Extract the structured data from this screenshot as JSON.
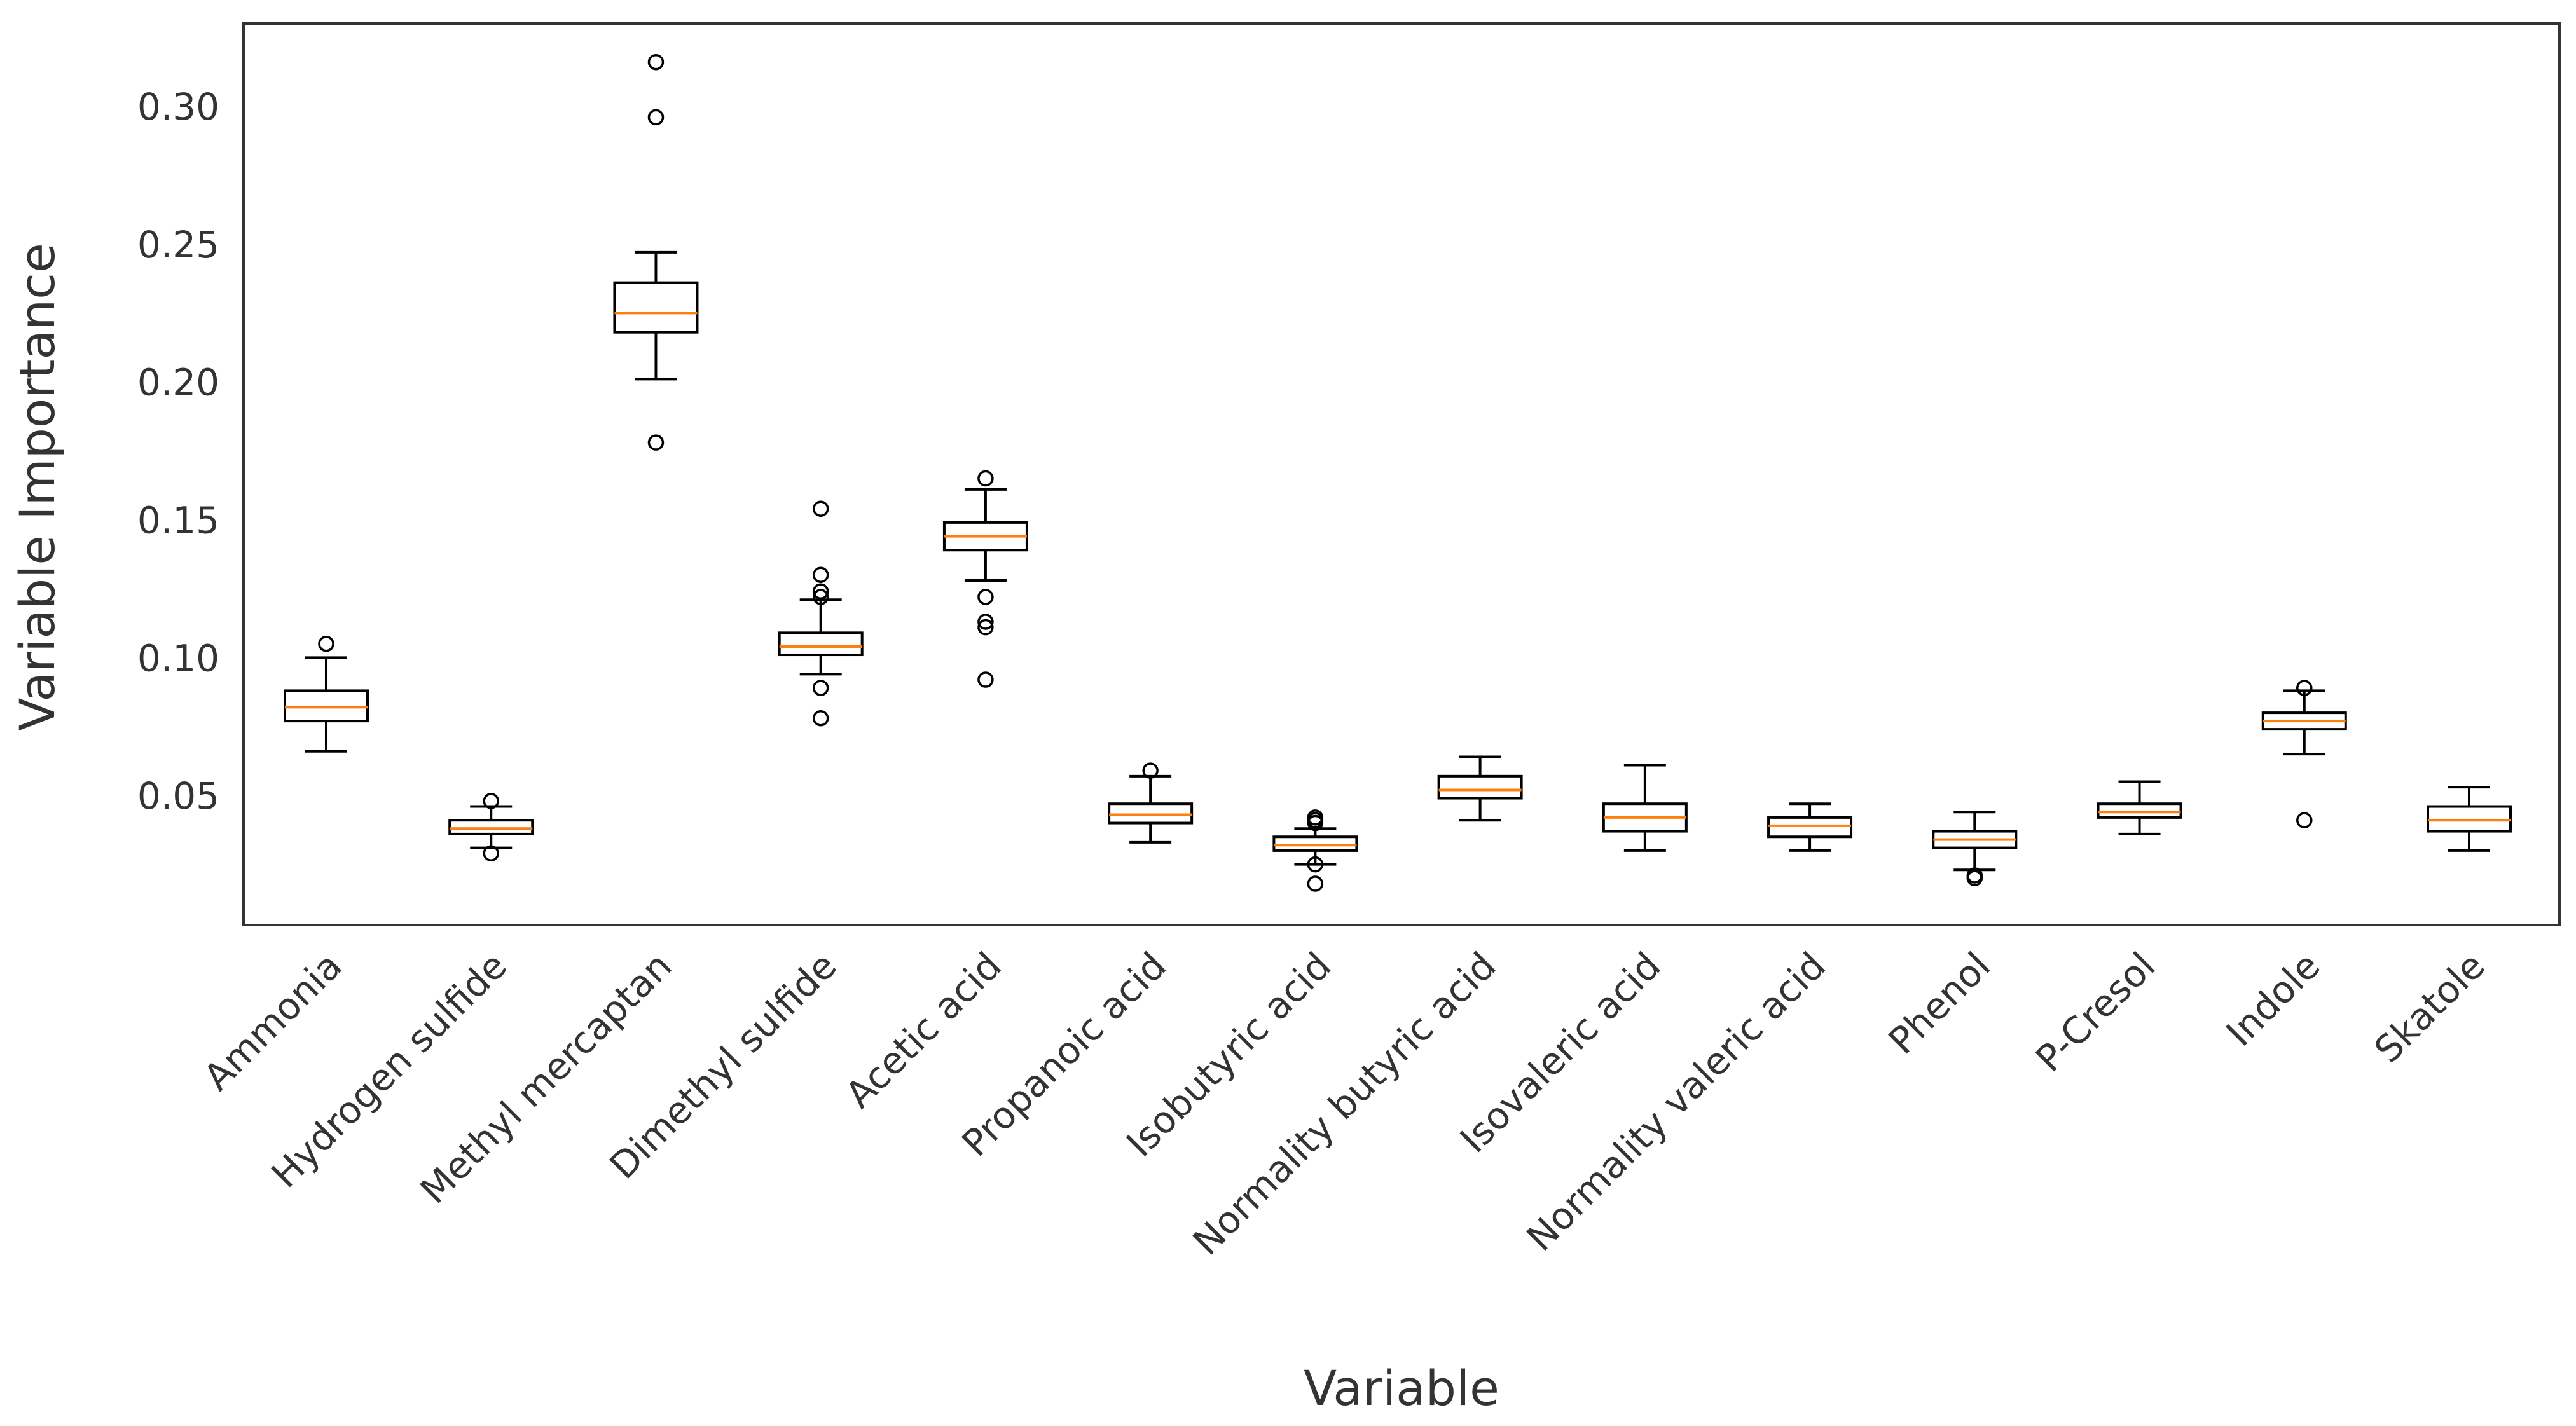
{
  "chart_data": {
    "type": "boxplot",
    "title": "",
    "xlabel": "Variable",
    "ylabel": "Variable Importance",
    "ylim": [
      0.003,
      0.33
    ],
    "yticks": [
      "0.05",
      "0.10",
      "0.15",
      "0.20",
      "0.25",
      "0.30"
    ],
    "grid": false,
    "colors": {
      "box": "#000000",
      "median": "#ff7f0e",
      "frame": "#333333"
    },
    "categories": [
      "Ammonia",
      "Hydrogen sulfide",
      "Methyl mercaptan",
      "Dimethyl sulfide",
      "Acetic acid",
      "Propanoic acid",
      "Isobutyric acid",
      "Normality butyric acid",
      "Isovaleric acid",
      "Normality valeric acid",
      "Phenol",
      "P-Cresol",
      "Indole",
      "Skatole"
    ],
    "boxes": [
      {
        "whisker_low": 0.066,
        "q1": 0.077,
        "median": 0.082,
        "q3": 0.088,
        "whisker_high": 0.1,
        "outliers": [
          0.105
        ]
      },
      {
        "whisker_low": 0.031,
        "q1": 0.036,
        "median": 0.038,
        "q3": 0.041,
        "whisker_high": 0.046,
        "outliers": [
          0.048,
          0.029
        ]
      },
      {
        "whisker_low": 0.201,
        "q1": 0.218,
        "median": 0.225,
        "q3": 0.236,
        "whisker_high": 0.247,
        "outliers": [
          0.316,
          0.296,
          0.178
        ]
      },
      {
        "whisker_low": 0.094,
        "q1": 0.101,
        "median": 0.104,
        "q3": 0.109,
        "whisker_high": 0.121,
        "outliers": [
          0.154,
          0.13,
          0.124,
          0.122,
          0.089,
          0.078
        ]
      },
      {
        "whisker_low": 0.128,
        "q1": 0.139,
        "median": 0.144,
        "q3": 0.149,
        "whisker_high": 0.161,
        "outliers": [
          0.165,
          0.122,
          0.113,
          0.111,
          0.092
        ]
      },
      {
        "whisker_low": 0.033,
        "q1": 0.04,
        "median": 0.043,
        "q3": 0.047,
        "whisker_high": 0.057,
        "outliers": [
          0.059
        ]
      },
      {
        "whisker_low": 0.025,
        "q1": 0.03,
        "median": 0.032,
        "q3": 0.035,
        "whisker_high": 0.038,
        "outliers": [
          0.042,
          0.041,
          0.04,
          0.025,
          0.018
        ]
      },
      {
        "whisker_low": 0.041,
        "q1": 0.049,
        "median": 0.052,
        "q3": 0.057,
        "whisker_high": 0.064,
        "outliers": []
      },
      {
        "whisker_low": 0.03,
        "q1": 0.037,
        "median": 0.042,
        "q3": 0.047,
        "whisker_high": 0.061,
        "outliers": []
      },
      {
        "whisker_low": 0.03,
        "q1": 0.035,
        "median": 0.039,
        "q3": 0.042,
        "whisker_high": 0.047,
        "outliers": []
      },
      {
        "whisker_low": 0.023,
        "q1": 0.031,
        "median": 0.034,
        "q3": 0.037,
        "whisker_high": 0.044,
        "outliers": [
          0.021,
          0.02
        ]
      },
      {
        "whisker_low": 0.036,
        "q1": 0.042,
        "median": 0.044,
        "q3": 0.047,
        "whisker_high": 0.055,
        "outliers": []
      },
      {
        "whisker_low": 0.065,
        "q1": 0.074,
        "median": 0.077,
        "q3": 0.08,
        "whisker_high": 0.088,
        "outliers": [
          0.089,
          0.041
        ]
      },
      {
        "whisker_low": 0.03,
        "q1": 0.037,
        "median": 0.041,
        "q3": 0.046,
        "whisker_high": 0.053,
        "outliers": []
      }
    ]
  }
}
